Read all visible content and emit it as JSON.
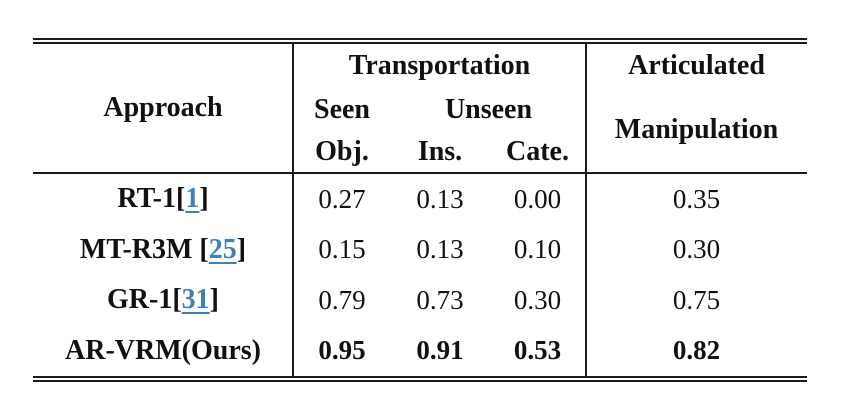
{
  "table": {
    "header": {
      "approach": "Approach",
      "transportation": "Transportation",
      "seen": "Seen",
      "unseen": "Unseen",
      "obj": "Obj.",
      "ins": "Ins.",
      "cate": "Cate.",
      "articulated": "Articulated",
      "manipulation": "Manipulation"
    },
    "punct": {
      "open": "[",
      "close": "]"
    },
    "rows": [
      {
        "name": "RT-1",
        "cite": "1",
        "values": [
          "0.27",
          "0.13",
          "0.00"
        ],
        "artic": "0.35"
      },
      {
        "name": "MT-R3M ",
        "cite": "25",
        "values": [
          "0.15",
          "0.13",
          "0.10"
        ],
        "artic": "0.30"
      },
      {
        "name": "GR-1",
        "cite": "31",
        "values": [
          "0.79",
          "0.73",
          "0.30"
        ],
        "artic": "0.75"
      },
      {
        "name": "AR-VRM(Ours)",
        "values": [
          "0.95",
          "0.91",
          "0.53"
        ],
        "artic": "0.82"
      }
    ],
    "colors": {
      "citation_blue": "#4180B5",
      "text": "#111111",
      "rule": "#1a1a1a"
    }
  },
  "chart_data": {
    "type": "table",
    "columns": [
      "Approach",
      "Transportation Seen Obj.",
      "Transportation Unseen Ins.",
      "Transportation Unseen Cate.",
      "Articulated Manipulation"
    ],
    "rows": [
      [
        "RT-1[1]",
        0.27,
        0.13,
        0.0,
        0.35
      ],
      [
        "MT-R3M [25]",
        0.15,
        0.13,
        0.1,
        0.3
      ],
      [
        "GR-1[31]",
        0.79,
        0.73,
        0.3,
        0.75
      ],
      [
        "AR-VRM(Ours)",
        0.95,
        0.91,
        0.53,
        0.82
      ]
    ],
    "emphasized_row": "AR-VRM(Ours)",
    "citation_refs": [
      "1",
      "25",
      "31"
    ]
  }
}
